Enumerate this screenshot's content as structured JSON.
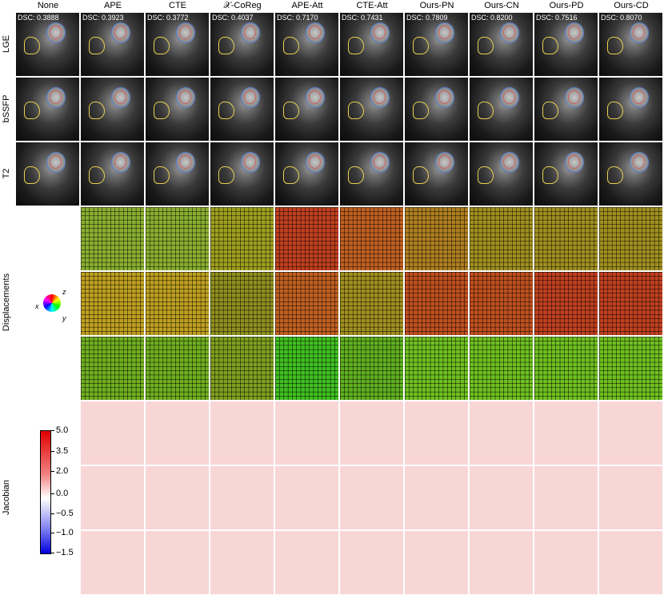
{
  "columns": [
    "None",
    "APE",
    "CTE",
    "𝒳-CoReg",
    "APE-Att",
    "CTE-Att",
    "Ours-PN",
    "Ours-CN",
    "Ours-PD",
    "Ours-CD"
  ],
  "dsc": [
    "DSC: 0.3888",
    "DSC: 0.3923",
    "DSC: 0.3772",
    "DSC: 0.4037",
    "DSC: 0.7170",
    "DSC: 0.7431",
    "DSC: 0.7809",
    "DSC: 0.8200",
    "DSC: 0.7516",
    "DSC: 0.8070"
  ],
  "rows": {
    "lge": "LGE",
    "bssfp": "bSSFP",
    "t2": "T2",
    "displacements": "Displacements",
    "jacobian": "Jacobian"
  },
  "axes": {
    "x": "x",
    "y": "y",
    "z": "z"
  },
  "colorbar_ticks": [
    "5.0",
    "3.5",
    "2.0",
    "0.0",
    "−0.5",
    "−1.0",
    "−1.5"
  ],
  "colors": {
    "contour_epi": "#5a7fd0",
    "contour_endo": "#d06060",
    "contour_liver": "#e8d050",
    "jac_pos": "#e00000",
    "jac_neg": "#0000e0"
  }
}
